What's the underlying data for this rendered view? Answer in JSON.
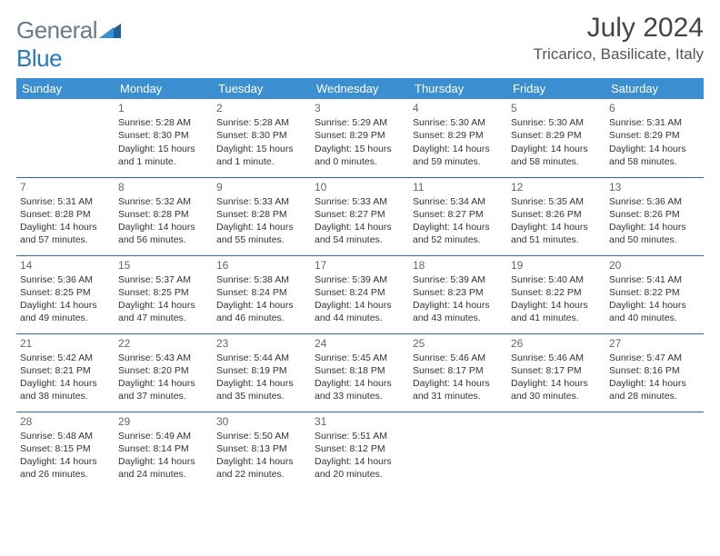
{
  "logo": {
    "text1": "General",
    "text2": "Blue"
  },
  "header": {
    "month_title": "July 2024",
    "location": "Tricarico, Basilicate, Italy"
  },
  "colors": {
    "header_bg": "#3b8fd1",
    "header_text": "#ffffff",
    "week_border": "#2a6ea8",
    "logo_gray": "#6b7a8a",
    "logo_blue": "#2a7ab9"
  },
  "weekdays": [
    "Sunday",
    "Monday",
    "Tuesday",
    "Wednesday",
    "Thursday",
    "Friday",
    "Saturday"
  ],
  "weeks": [
    [
      null,
      {
        "d": "1",
        "sr": "Sunrise: 5:28 AM",
        "ss": "Sunset: 8:30 PM",
        "dl1": "Daylight: 15 hours",
        "dl2": "and 1 minute."
      },
      {
        "d": "2",
        "sr": "Sunrise: 5:28 AM",
        "ss": "Sunset: 8:30 PM",
        "dl1": "Daylight: 15 hours",
        "dl2": "and 1 minute."
      },
      {
        "d": "3",
        "sr": "Sunrise: 5:29 AM",
        "ss": "Sunset: 8:29 PM",
        "dl1": "Daylight: 15 hours",
        "dl2": "and 0 minutes."
      },
      {
        "d": "4",
        "sr": "Sunrise: 5:30 AM",
        "ss": "Sunset: 8:29 PM",
        "dl1": "Daylight: 14 hours",
        "dl2": "and 59 minutes."
      },
      {
        "d": "5",
        "sr": "Sunrise: 5:30 AM",
        "ss": "Sunset: 8:29 PM",
        "dl1": "Daylight: 14 hours",
        "dl2": "and 58 minutes."
      },
      {
        "d": "6",
        "sr": "Sunrise: 5:31 AM",
        "ss": "Sunset: 8:29 PM",
        "dl1": "Daylight: 14 hours",
        "dl2": "and 58 minutes."
      }
    ],
    [
      {
        "d": "7",
        "sr": "Sunrise: 5:31 AM",
        "ss": "Sunset: 8:28 PM",
        "dl1": "Daylight: 14 hours",
        "dl2": "and 57 minutes."
      },
      {
        "d": "8",
        "sr": "Sunrise: 5:32 AM",
        "ss": "Sunset: 8:28 PM",
        "dl1": "Daylight: 14 hours",
        "dl2": "and 56 minutes."
      },
      {
        "d": "9",
        "sr": "Sunrise: 5:33 AM",
        "ss": "Sunset: 8:28 PM",
        "dl1": "Daylight: 14 hours",
        "dl2": "and 55 minutes."
      },
      {
        "d": "10",
        "sr": "Sunrise: 5:33 AM",
        "ss": "Sunset: 8:27 PM",
        "dl1": "Daylight: 14 hours",
        "dl2": "and 54 minutes."
      },
      {
        "d": "11",
        "sr": "Sunrise: 5:34 AM",
        "ss": "Sunset: 8:27 PM",
        "dl1": "Daylight: 14 hours",
        "dl2": "and 52 minutes."
      },
      {
        "d": "12",
        "sr": "Sunrise: 5:35 AM",
        "ss": "Sunset: 8:26 PM",
        "dl1": "Daylight: 14 hours",
        "dl2": "and 51 minutes."
      },
      {
        "d": "13",
        "sr": "Sunrise: 5:36 AM",
        "ss": "Sunset: 8:26 PM",
        "dl1": "Daylight: 14 hours",
        "dl2": "and 50 minutes."
      }
    ],
    [
      {
        "d": "14",
        "sr": "Sunrise: 5:36 AM",
        "ss": "Sunset: 8:25 PM",
        "dl1": "Daylight: 14 hours",
        "dl2": "and 49 minutes."
      },
      {
        "d": "15",
        "sr": "Sunrise: 5:37 AM",
        "ss": "Sunset: 8:25 PM",
        "dl1": "Daylight: 14 hours",
        "dl2": "and 47 minutes."
      },
      {
        "d": "16",
        "sr": "Sunrise: 5:38 AM",
        "ss": "Sunset: 8:24 PM",
        "dl1": "Daylight: 14 hours",
        "dl2": "and 46 minutes."
      },
      {
        "d": "17",
        "sr": "Sunrise: 5:39 AM",
        "ss": "Sunset: 8:24 PM",
        "dl1": "Daylight: 14 hours",
        "dl2": "and 44 minutes."
      },
      {
        "d": "18",
        "sr": "Sunrise: 5:39 AM",
        "ss": "Sunset: 8:23 PM",
        "dl1": "Daylight: 14 hours",
        "dl2": "and 43 minutes."
      },
      {
        "d": "19",
        "sr": "Sunrise: 5:40 AM",
        "ss": "Sunset: 8:22 PM",
        "dl1": "Daylight: 14 hours",
        "dl2": "and 41 minutes."
      },
      {
        "d": "20",
        "sr": "Sunrise: 5:41 AM",
        "ss": "Sunset: 8:22 PM",
        "dl1": "Daylight: 14 hours",
        "dl2": "and 40 minutes."
      }
    ],
    [
      {
        "d": "21",
        "sr": "Sunrise: 5:42 AM",
        "ss": "Sunset: 8:21 PM",
        "dl1": "Daylight: 14 hours",
        "dl2": "and 38 minutes."
      },
      {
        "d": "22",
        "sr": "Sunrise: 5:43 AM",
        "ss": "Sunset: 8:20 PM",
        "dl1": "Daylight: 14 hours",
        "dl2": "and 37 minutes."
      },
      {
        "d": "23",
        "sr": "Sunrise: 5:44 AM",
        "ss": "Sunset: 8:19 PM",
        "dl1": "Daylight: 14 hours",
        "dl2": "and 35 minutes."
      },
      {
        "d": "24",
        "sr": "Sunrise: 5:45 AM",
        "ss": "Sunset: 8:18 PM",
        "dl1": "Daylight: 14 hours",
        "dl2": "and 33 minutes."
      },
      {
        "d": "25",
        "sr": "Sunrise: 5:46 AM",
        "ss": "Sunset: 8:17 PM",
        "dl1": "Daylight: 14 hours",
        "dl2": "and 31 minutes."
      },
      {
        "d": "26",
        "sr": "Sunrise: 5:46 AM",
        "ss": "Sunset: 8:17 PM",
        "dl1": "Daylight: 14 hours",
        "dl2": "and 30 minutes."
      },
      {
        "d": "27",
        "sr": "Sunrise: 5:47 AM",
        "ss": "Sunset: 8:16 PM",
        "dl1": "Daylight: 14 hours",
        "dl2": "and 28 minutes."
      }
    ],
    [
      {
        "d": "28",
        "sr": "Sunrise: 5:48 AM",
        "ss": "Sunset: 8:15 PM",
        "dl1": "Daylight: 14 hours",
        "dl2": "and 26 minutes."
      },
      {
        "d": "29",
        "sr": "Sunrise: 5:49 AM",
        "ss": "Sunset: 8:14 PM",
        "dl1": "Daylight: 14 hours",
        "dl2": "and 24 minutes."
      },
      {
        "d": "30",
        "sr": "Sunrise: 5:50 AM",
        "ss": "Sunset: 8:13 PM",
        "dl1": "Daylight: 14 hours",
        "dl2": "and 22 minutes."
      },
      {
        "d": "31",
        "sr": "Sunrise: 5:51 AM",
        "ss": "Sunset: 8:12 PM",
        "dl1": "Daylight: 14 hours",
        "dl2": "and 20 minutes."
      },
      null,
      null,
      null
    ]
  ]
}
